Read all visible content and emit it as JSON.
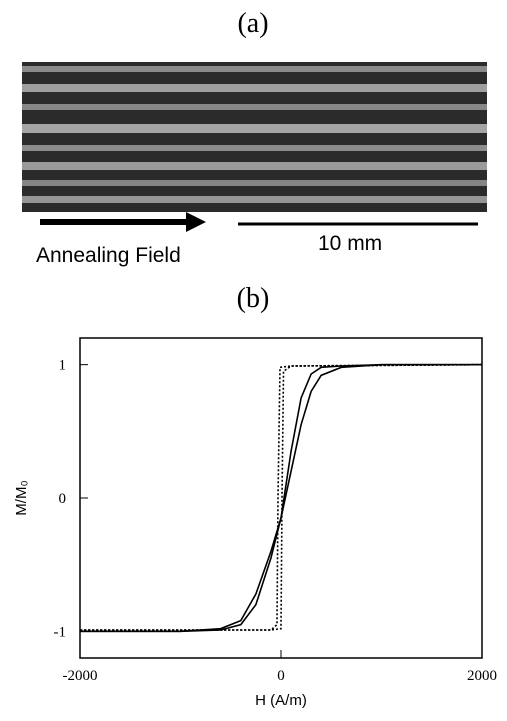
{
  "panel_a": {
    "label": "(a)",
    "arrow_label": "Annealing Field",
    "scale_label": "10 mm"
  },
  "chart_data": {
    "type": "line",
    "title": "(b)",
    "xlabel": "H (A/m)",
    "ylabel": "M/M₀",
    "xlim": [
      -2000,
      2000
    ],
    "ylim": [
      -1.2,
      1.2
    ],
    "xticks": [
      -2000,
      0,
      2000
    ],
    "yticks": [
      -1,
      0,
      1
    ],
    "series": [
      {
        "color": "#000000",
        "dash": "solid",
        "x": [
          -2000,
          -1000,
          -600,
          -400,
          -250,
          -100,
          0,
          100,
          200,
          300,
          400,
          600,
          1000,
          2000
        ],
        "values": [
          -1,
          -1,
          -0.99,
          -0.95,
          -0.8,
          -0.45,
          -0.15,
          0.35,
          0.75,
          0.93,
          0.98,
          0.99,
          1,
          1
        ]
      },
      {
        "color": "#000000",
        "dash": "solid",
        "x": [
          -2000,
          -1000,
          -600,
          -400,
          -250,
          -100,
          0,
          100,
          200,
          300,
          400,
          600,
          1000,
          2000
        ],
        "values": [
          -1,
          -1,
          -0.98,
          -0.92,
          -0.72,
          -0.4,
          -0.15,
          0.2,
          0.55,
          0.8,
          0.92,
          0.98,
          1,
          1
        ]
      },
      {
        "color": "#000000",
        "dash": "dotted",
        "x": [
          -2000,
          -100,
          0,
          10,
          25,
          100,
          2000
        ],
        "values": [
          -0.99,
          -0.99,
          -0.98,
          0,
          0.95,
          0.99,
          1
        ]
      },
      {
        "color": "#000000",
        "dash": "dotted",
        "x": [
          2000,
          100,
          -10,
          -30,
          -40,
          -100,
          -2000
        ],
        "values": [
          1,
          0.99,
          0.98,
          0,
          -0.95,
          -0.99,
          -0.99
        ]
      }
    ]
  }
}
